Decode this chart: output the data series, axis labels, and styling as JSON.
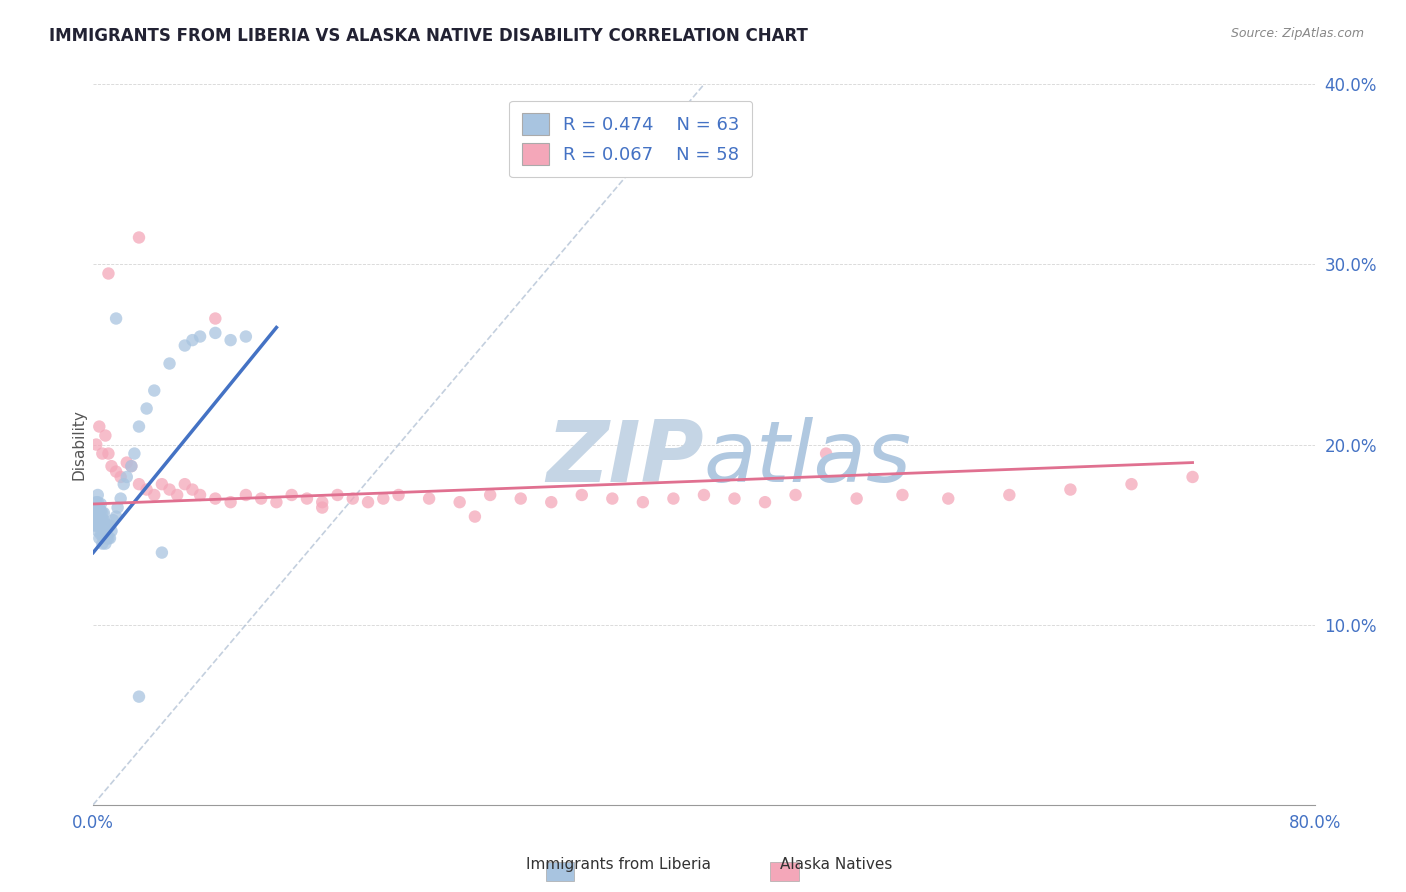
{
  "title": "IMMIGRANTS FROM LIBERIA VS ALASKA NATIVE DISABILITY CORRELATION CHART",
  "source": "Source: ZipAtlas.com",
  "ylabel": "Disability",
  "r_liberia": 0.474,
  "n_liberia": 63,
  "r_alaska": 0.067,
  "n_alaska": 58,
  "xlim": [
    0.0,
    0.8
  ],
  "ylim": [
    0.0,
    0.4
  ],
  "xtick_positions": [
    0.0,
    0.8
  ],
  "xtick_labels": [
    "0.0%",
    "80.0%"
  ],
  "ytick_positions": [
    0.0,
    0.1,
    0.2,
    0.3,
    0.4
  ],
  "ytick_labels": [
    "",
    "10.0%",
    "20.0%",
    "30.0%",
    "40.0%"
  ],
  "color_liberia": "#a8c4e0",
  "color_alaska": "#f4a7b9",
  "color_liberia_line": "#4472c4",
  "color_alaska_line": "#e07090",
  "color_diag_line": "#aabbd0",
  "axis_tick_color": "#4472c4",
  "watermark_zip": "ZIP",
  "watermark_atlas": "atlas",
  "watermark_color_zip": "#c5d5e5",
  "watermark_color_atlas": "#b0c8e0",
  "liberia_x": [
    0.001,
    0.001,
    0.001,
    0.002,
    0.002,
    0.002,
    0.002,
    0.003,
    0.003,
    0.003,
    0.003,
    0.003,
    0.003,
    0.004,
    0.004,
    0.004,
    0.004,
    0.005,
    0.005,
    0.005,
    0.005,
    0.005,
    0.006,
    0.006,
    0.006,
    0.006,
    0.006,
    0.007,
    0.007,
    0.007,
    0.007,
    0.007,
    0.008,
    0.008,
    0.008,
    0.009,
    0.009,
    0.01,
    0.01,
    0.011,
    0.011,
    0.012,
    0.013,
    0.015,
    0.016,
    0.018,
    0.02,
    0.022,
    0.025,
    0.027,
    0.03,
    0.035,
    0.04,
    0.05,
    0.06,
    0.065,
    0.07,
    0.08,
    0.09,
    0.1,
    0.03,
    0.045,
    0.015
  ],
  "liberia_y": [
    0.155,
    0.16,
    0.165,
    0.155,
    0.16,
    0.163,
    0.168,
    0.152,
    0.157,
    0.16,
    0.163,
    0.168,
    0.172,
    0.148,
    0.155,
    0.16,
    0.165,
    0.15,
    0.155,
    0.16,
    0.163,
    0.167,
    0.145,
    0.15,
    0.155,
    0.158,
    0.162,
    0.148,
    0.152,
    0.155,
    0.158,
    0.162,
    0.145,
    0.15,
    0.155,
    0.148,
    0.152,
    0.148,
    0.155,
    0.148,
    0.155,
    0.152,
    0.158,
    0.16,
    0.165,
    0.17,
    0.178,
    0.182,
    0.188,
    0.195,
    0.21,
    0.22,
    0.23,
    0.245,
    0.255,
    0.258,
    0.26,
    0.262,
    0.258,
    0.26,
    0.06,
    0.14,
    0.27
  ],
  "alaska_x": [
    0.002,
    0.004,
    0.006,
    0.008,
    0.01,
    0.012,
    0.015,
    0.018,
    0.022,
    0.025,
    0.03,
    0.035,
    0.04,
    0.045,
    0.05,
    0.055,
    0.06,
    0.065,
    0.07,
    0.08,
    0.09,
    0.1,
    0.11,
    0.12,
    0.13,
    0.14,
    0.15,
    0.16,
    0.17,
    0.18,
    0.19,
    0.2,
    0.22,
    0.24,
    0.26,
    0.28,
    0.3,
    0.32,
    0.34,
    0.36,
    0.38,
    0.4,
    0.42,
    0.44,
    0.46,
    0.5,
    0.53,
    0.56,
    0.6,
    0.64,
    0.68,
    0.72,
    0.01,
    0.03,
    0.08,
    0.15,
    0.25,
    0.48
  ],
  "alaska_y": [
    0.2,
    0.21,
    0.195,
    0.205,
    0.195,
    0.188,
    0.185,
    0.182,
    0.19,
    0.188,
    0.178,
    0.175,
    0.172,
    0.178,
    0.175,
    0.172,
    0.178,
    0.175,
    0.172,
    0.17,
    0.168,
    0.172,
    0.17,
    0.168,
    0.172,
    0.17,
    0.168,
    0.172,
    0.17,
    0.168,
    0.17,
    0.172,
    0.17,
    0.168,
    0.172,
    0.17,
    0.168,
    0.172,
    0.17,
    0.168,
    0.17,
    0.172,
    0.17,
    0.168,
    0.172,
    0.17,
    0.172,
    0.17,
    0.172,
    0.175,
    0.178,
    0.182,
    0.295,
    0.315,
    0.27,
    0.165,
    0.16,
    0.195
  ],
  "liberia_line_x0": 0.0,
  "liberia_line_y0": 0.14,
  "liberia_line_x1": 0.12,
  "liberia_line_y1": 0.265,
  "alaska_line_x0": 0.0,
  "alaska_line_y0": 0.167,
  "alaska_line_x1": 0.72,
  "alaska_line_y1": 0.19,
  "diag_line_x0": 0.0,
  "diag_line_y0": 0.0,
  "diag_line_x1": 0.4,
  "diag_line_y1": 0.4
}
